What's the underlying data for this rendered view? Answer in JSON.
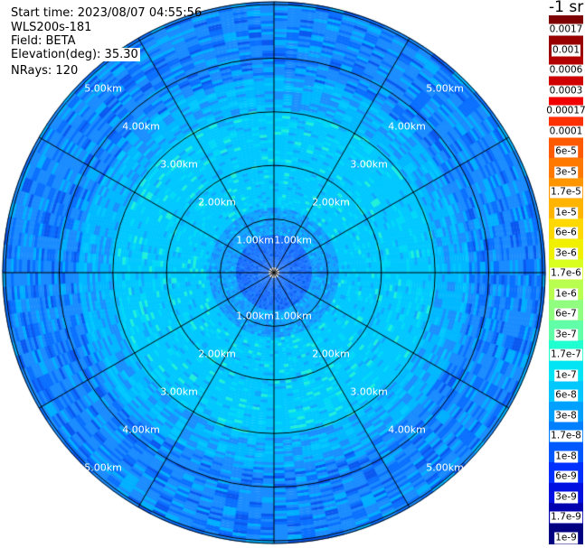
{
  "header": {
    "start_time": "Start time: 2023/08/07 04:55:56",
    "instrument": "WLS200s-181",
    "field": "Field: BETA",
    "elevation": "Elevation(deg): 35.30",
    "nrays": "NRays: 120"
  },
  "chart_data": {
    "type": "heatmap",
    "projection": "polar (PPI)",
    "field": "BETA",
    "unit": "-1 sr",
    "n_rays": 120,
    "range_rings": [
      "1.00km",
      "2.00km",
      "3.00km",
      "4.00km",
      "5.00km"
    ],
    "range_rings_km": [
      1,
      2,
      3,
      4,
      5
    ],
    "max_range_km": 5.05,
    "spoke_interval_deg": 30,
    "colorbar": {
      "position": "right",
      "scale": "log",
      "labels": [
        "0.0017",
        "0.001",
        "0.0006",
        "0.0003",
        "0.00017",
        "0.0001",
        "6e-5",
        "3e-5",
        "1.7e-5",
        "1e-5",
        "6e-6",
        "3e-6",
        "1.7e-6",
        "1e-6",
        "6e-7",
        "3e-7",
        "1.7e-7",
        "1e-7",
        "6e-8",
        "3e-8",
        "1.7e-8",
        "1e-8",
        "6e-9",
        "3e-9",
        "1.7e-9",
        "1e-9"
      ],
      "colors": [
        "#7f0000",
        "#990000",
        "#b30000",
        "#d00000",
        "#f00000",
        "#ff3000",
        "#ff5a00",
        "#ff7800",
        "#ff9600",
        "#ffb400",
        "#ffd800",
        "#f0f000",
        "#d8ff20",
        "#b8ff50",
        "#90ff80",
        "#60ffa8",
        "#20ffd0",
        "#00e4f4",
        "#00c8ff",
        "#00a0ff",
        "#0080ff",
        "#0058ff",
        "#0030ff",
        "#0010e0",
        "#0000b0",
        "#000080"
      ]
    },
    "dominant_values": "mostly 3e-8 to 1.7e-7; lower near origin"
  }
}
